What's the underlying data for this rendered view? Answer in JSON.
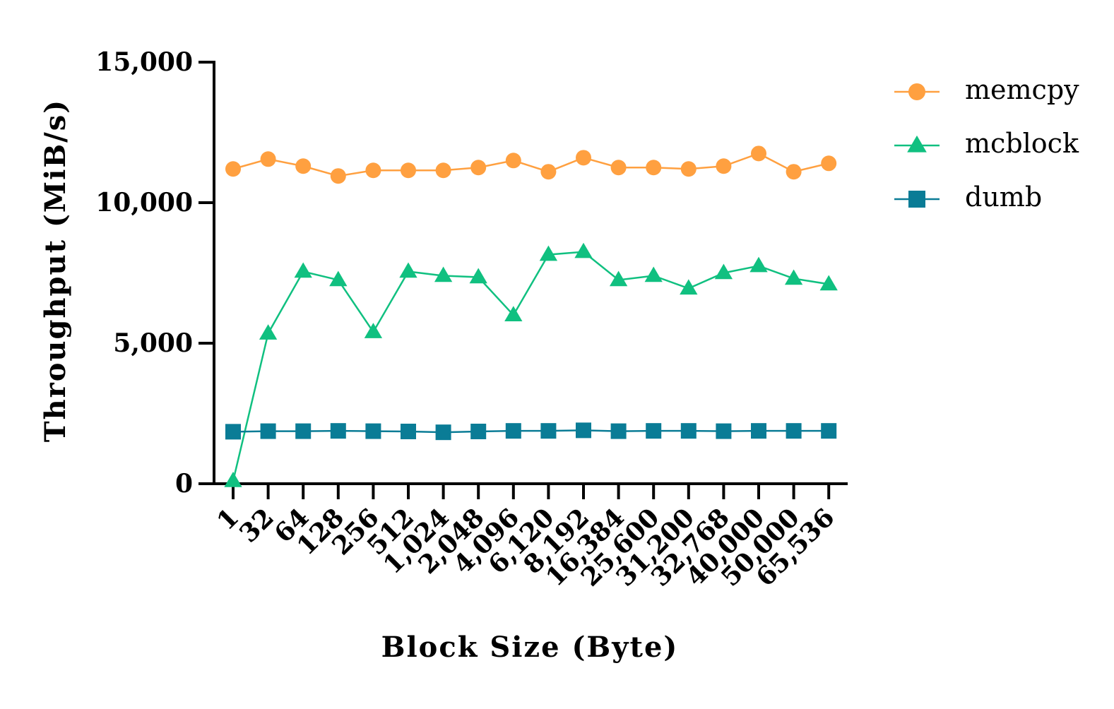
{
  "chart_data": {
    "type": "line",
    "xlabel": "Block Size (Byte)",
    "ylabel": "Throughput (MiB/s)",
    "ylim": [
      0,
      15000
    ],
    "yticks": [
      "0",
      "5,000",
      "10,000",
      "15,000"
    ],
    "ytick_values": [
      0,
      5000,
      10000,
      15000
    ],
    "categories": [
      "1",
      "32",
      "64",
      "128",
      "256",
      "512",
      "1,024",
      "2,048",
      "4,096",
      "6,120",
      "8,192",
      "16,384",
      "25,600",
      "31,200",
      "32,768",
      "40,000",
      "50,000",
      "65,536"
    ],
    "grid": false,
    "legend_position": "top-right",
    "series": [
      {
        "name": "memcpy",
        "color": "#FFA040",
        "marker": "circle",
        "values": [
          11200,
          11550,
          11300,
          10950,
          11150,
          11150,
          11150,
          11250,
          11500,
          11100,
          11600,
          11250,
          11250,
          11200,
          11300,
          11750,
          11100,
          11400
        ]
      },
      {
        "name": "mcblock",
        "color": "#10C080",
        "marker": "triangle",
        "values": [
          100,
          5350,
          7550,
          7250,
          5400,
          7550,
          7400,
          7350,
          6000,
          8150,
          8250,
          7250,
          7400,
          6950,
          7500,
          7750,
          7300,
          7100
        ]
      },
      {
        "name": "dumb",
        "color": "#0A7C96",
        "marker": "square",
        "values": [
          1850,
          1870,
          1870,
          1880,
          1870,
          1860,
          1830,
          1860,
          1880,
          1880,
          1900,
          1870,
          1880,
          1880,
          1870,
          1880,
          1880,
          1880
        ]
      }
    ]
  }
}
